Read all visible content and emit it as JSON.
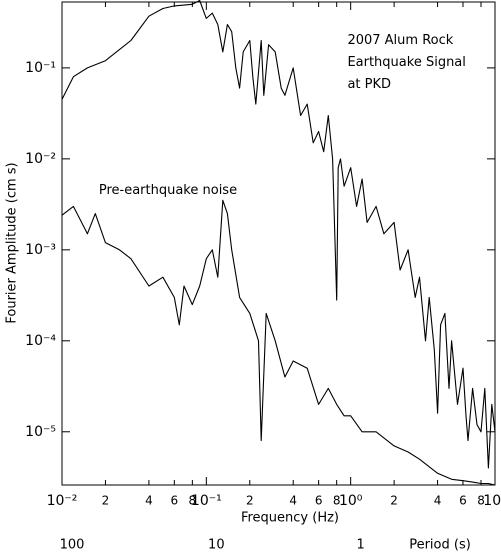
{
  "chart_data": {
    "type": "line",
    "xlabel": "Frequency (Hz)",
    "ylabel": "Fourier Amplitude (cm s)",
    "xlog": true,
    "ylog": true,
    "xlim": [
      0.01,
      10
    ],
    "ylim": [
      2.6e-06,
      0.53
    ],
    "xticks": [
      {
        "value": 0.01,
        "label": "10⁻²"
      },
      {
        "value": 0.02,
        "label": "2"
      },
      {
        "value": 0.04,
        "label": "4"
      },
      {
        "value": 0.06,
        "label": "6"
      },
      {
        "value": 0.08,
        "label": "8"
      },
      {
        "value": 0.1,
        "label": "10⁻¹"
      },
      {
        "value": 0.2,
        "label": "2"
      },
      {
        "value": 0.4,
        "label": "4"
      },
      {
        "value": 0.6,
        "label": "6"
      },
      {
        "value": 0.8,
        "label": "8"
      },
      {
        "value": 1,
        "label": "10⁰"
      },
      {
        "value": 2,
        "label": "2"
      },
      {
        "value": 4,
        "label": "4"
      },
      {
        "value": 6,
        "label": "6"
      },
      {
        "value": 8,
        "label": "8"
      },
      {
        "value": 10,
        "label": "10¹"
      }
    ],
    "yticks": [
      {
        "value": 1e-05,
        "label": "10⁻⁵"
      },
      {
        "value": 0.0001,
        "label": "10⁻⁴"
      },
      {
        "value": 0.001,
        "label": "10⁻³"
      },
      {
        "value": 0.01,
        "label": "10⁻²"
      },
      {
        "value": 0.1,
        "label": "10⁻¹"
      }
    ],
    "period_label": "Period (s)",
    "period_ticks": [
      {
        "value": 0.01,
        "label": "100"
      },
      {
        "value": 0.1,
        "label": "10"
      },
      {
        "value": 1,
        "label": "1"
      }
    ],
    "annotations": [
      {
        "text": [
          "2007 Alum Rock",
          "Earthquake Signal",
          "at PKD"
        ],
        "x": 0.95,
        "y": 0.2
      },
      {
        "text": [
          "Pre-earthquake noise"
        ],
        "x": 0.018,
        "y": 0.0045
      }
    ],
    "series": [
      {
        "color": "#000000",
        "x": [
          0.01,
          0.012,
          0.015,
          0.02,
          0.03,
          0.04,
          0.05,
          0.06,
          0.08,
          0.09,
          0.1,
          0.11,
          0.12,
          0.13,
          0.14,
          0.15,
          0.16,
          0.17,
          0.18,
          0.2,
          0.21,
          0.22,
          0.24,
          0.25,
          0.27,
          0.3,
          0.33,
          0.35,
          0.4,
          0.45,
          0.5,
          0.55,
          0.6,
          0.65,
          0.7,
          0.75,
          0.8,
          0.82,
          0.85,
          0.9,
          1,
          1.1,
          1.2,
          1.3,
          1.5,
          1.7,
          2,
          2.2,
          2.5,
          2.8,
          3,
          3.3,
          3.5,
          3.8,
          4,
          4.2,
          4.5,
          4.8,
          5,
          5.5,
          6,
          6.3,
          6.5,
          7,
          7.5,
          8,
          8.5,
          9,
          9.5,
          10
        ],
        "values": [
          0.045,
          0.08,
          0.1,
          0.12,
          0.2,
          0.37,
          0.45,
          0.48,
          0.5,
          0.55,
          0.35,
          0.4,
          0.3,
          0.15,
          0.3,
          0.25,
          0.1,
          0.06,
          0.15,
          0.2,
          0.08,
          0.04,
          0.2,
          0.05,
          0.18,
          0.15,
          0.06,
          0.05,
          0.1,
          0.03,
          0.04,
          0.015,
          0.02,
          0.012,
          0.03,
          0.01,
          0.00028,
          0.008,
          0.01,
          0.005,
          0.008,
          0.003,
          0.006,
          0.002,
          0.003,
          0.0015,
          0.002,
          0.0006,
          0.001,
          0.0003,
          0.0005,
          0.0001,
          0.0003,
          8e-05,
          1.6e-05,
          0.00015,
          0.0002,
          3e-05,
          0.0001,
          2e-05,
          5e-05,
          1.5e-05,
          8e-06,
          3e-05,
          1.2e-05,
          1e-05,
          3e-05,
          4e-06,
          2e-05,
          1e-05
        ]
      },
      {
        "color": "#000000",
        "x": [
          0.01,
          0.012,
          0.015,
          0.017,
          0.02,
          0.025,
          0.03,
          0.04,
          0.05,
          0.06,
          0.065,
          0.07,
          0.08,
          0.09,
          0.1,
          0.11,
          0.12,
          0.13,
          0.14,
          0.15,
          0.17,
          0.2,
          0.23,
          0.24,
          0.26,
          0.3,
          0.35,
          0.4,
          0.5,
          0.6,
          0.7,
          0.8,
          0.9,
          1,
          1.2,
          1.5,
          2,
          2.5,
          3,
          4,
          5,
          6,
          7,
          8,
          9,
          10
        ],
        "values": [
          0.0024,
          0.003,
          0.0015,
          0.0025,
          0.0012,
          0.001,
          0.0008,
          0.0004,
          0.0005,
          0.0003,
          0.00015,
          0.0004,
          0.00025,
          0.0004,
          0.0008,
          0.001,
          0.0005,
          0.0035,
          0.0025,
          0.001,
          0.0003,
          0.0002,
          0.0001,
          8e-06,
          0.0002,
          0.0001,
          4e-05,
          6e-05,
          5e-05,
          2e-05,
          3e-05,
          2e-05,
          1.5e-05,
          1.5e-05,
          1e-05,
          1e-05,
          7e-06,
          6e-06,
          5e-06,
          3.5e-06,
          3e-06,
          2.9e-06,
          2.8e-06,
          2.7e-06,
          2.7e-06,
          2.6e-06
        ]
      }
    ]
  }
}
